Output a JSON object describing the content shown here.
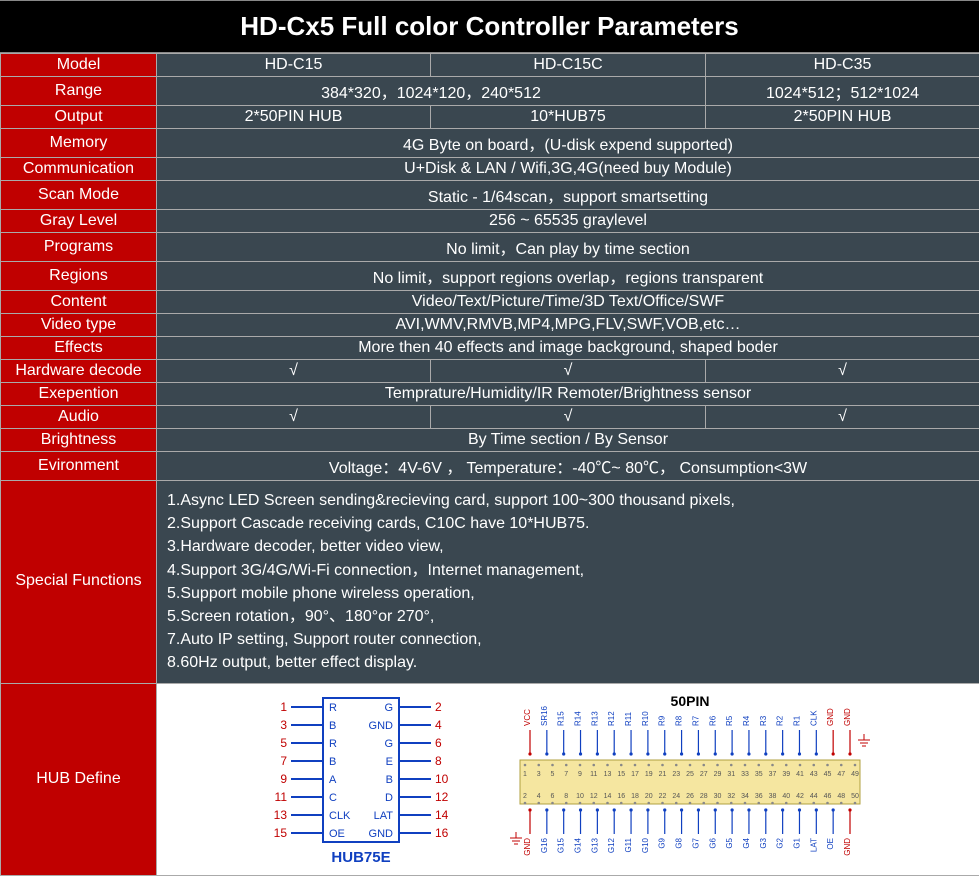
{
  "title": "HD-Cx5 Full color Controller Parameters",
  "header_bg": "#000000",
  "label_bg": "#c00000",
  "data_bg": "#3a4750",
  "rows": {
    "model": {
      "label": "Model",
      "c1": "HD-C15",
      "c2": "HD-C15C",
      "c3": "HD-C35"
    },
    "range": {
      "label": "Range",
      "span12": "384*320，1024*120，240*512",
      "c3": "1024*512；512*1024"
    },
    "output": {
      "label": "Output",
      "c1": "2*50PIN HUB",
      "c2": "10*HUB75",
      "c3": "2*50PIN HUB"
    },
    "memory": {
      "label": "Memory",
      "all": "4G Byte on board，(U-disk expend supported)"
    },
    "communication": {
      "label": "Communication",
      "all": "U+Disk & LAN / Wifi,3G,4G(need buy Module)"
    },
    "scan": {
      "label": "Scan Mode",
      "all": "Static - 1/64scan，support smartsetting"
    },
    "gray": {
      "label": "Gray Level",
      "all": "256 ~ 65535 graylevel"
    },
    "programs": {
      "label": "Programs",
      "all": "No limit，Can play by time section"
    },
    "regions": {
      "label": "Regions",
      "all": "No limit，support regions overlap，regions transparent"
    },
    "content": {
      "label": "Content",
      "all": "Video/Text/Picture/Time/3D Text/Office/SWF"
    },
    "videotype": {
      "label": "Video type",
      "all": "AVI,WMV,RMVB,MP4,MPG,FLV,SWF,VOB,etc…"
    },
    "effects": {
      "label": "Effects",
      "all": "More then 40 effects and image background, shaped boder"
    },
    "hwdecode": {
      "label": "Hardware decode",
      "c1": "√",
      "c2": "√",
      "c3": "√"
    },
    "exepention": {
      "label": "Exepention",
      "all": "Temprature/Humidity/IR Remoter/Brightness sensor"
    },
    "audio": {
      "label": "Audio",
      "c1": "√",
      "c2": "√",
      "c3": "√"
    },
    "brightness": {
      "label": "Brightness",
      "all": "By Time section / By Sensor"
    },
    "environment": {
      "label": "Evironment",
      "all": "Voltage：4V-6V ， Temperature：-40℃~ 80℃， Consumption<3W"
    }
  },
  "special": {
    "label": "Special Functions",
    "lines": [
      "1.Async LED Screen sending&recieving card, support 100~300 thousand pixels,",
      "2.Support Cascade receiving cards, C10C have 10*HUB75.",
      "3.Hardware decoder, better video view,",
      "4.Support 3G/4G/Wi-Fi connection，Internet management,",
      "5.Support mobile phone wireless operation,",
      "5.Screen rotation，90°、180°or 270°,",
      "7.Auto IP setting, Support router connection,",
      "8.60Hz output, better effect display."
    ]
  },
  "hub": {
    "label": "HUB Define",
    "hub75": {
      "title": "HUB75E",
      "left_pins": [
        "1",
        "3",
        "5",
        "7",
        "9",
        "11",
        "13",
        "15"
      ],
      "right_pins": [
        "2",
        "4",
        "6",
        "8",
        "10",
        "12",
        "14",
        "16"
      ],
      "left_labels": [
        "R",
        "B",
        "R",
        "B",
        "A",
        "C",
        "CLK",
        "OE"
      ],
      "right_labels": [
        "G",
        "GND",
        "G",
        "E",
        "B",
        "D",
        "LAT",
        "GND"
      ],
      "box_color": "#1040c0",
      "number_color": "#c00000"
    },
    "pin50": {
      "title": "50PIN",
      "top_labels": [
        "VCC",
        "SR16",
        "R15",
        "R14",
        "R13",
        "R12",
        "R11",
        "R10",
        "R9",
        "R8",
        "R7",
        "R6",
        "R5",
        "R4",
        "R3",
        "R2",
        "R1",
        "CLK",
        "GND",
        "GND"
      ],
      "bot_labels": [
        "GND",
        "G16",
        "G15",
        "G14",
        "G13",
        "G12",
        "G11",
        "G10",
        "G9",
        "G8",
        "G7",
        "G6",
        "G5",
        "G4",
        "G3",
        "G2",
        "G1",
        "LAT",
        "OE",
        "GND"
      ],
      "chip_numbers_top": [
        "1",
        "3",
        "5",
        "7",
        "9",
        "11",
        "13",
        "15",
        "17",
        "19",
        "21",
        "23",
        "25",
        "27",
        "29",
        "31",
        "33",
        "35",
        "37",
        "39",
        "41",
        "43",
        "45",
        "47",
        "49"
      ],
      "chip_numbers_bot": [
        "2",
        "4",
        "6",
        "8",
        "10",
        "12",
        "14",
        "16",
        "18",
        "20",
        "22",
        "24",
        "26",
        "28",
        "30",
        "32",
        "34",
        "36",
        "38",
        "40",
        "42",
        "44",
        "46",
        "48",
        "50"
      ],
      "vcc_color": "#c00000",
      "gnd_color": "#c00000",
      "signal_color": "#1040c0",
      "chip_fill": "#f5e6a0"
    }
  }
}
